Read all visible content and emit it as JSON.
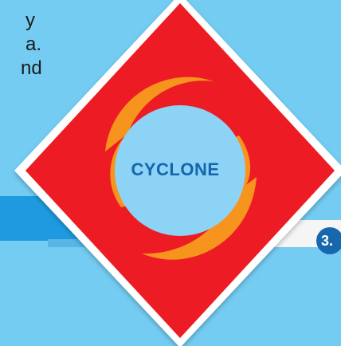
{
  "background_text": {
    "line1": "y",
    "line2": "a.",
    "line3": "nd"
  },
  "sign": {
    "label": "CYCLONE",
    "icon": "cyclone-icon",
    "colors": {
      "diamond": "#ed1c24",
      "swirl": "#f7941d",
      "circle": "#8dd3f5",
      "text": "#1565ad",
      "background": "#74ccf2"
    }
  },
  "badge": {
    "text": "3."
  }
}
